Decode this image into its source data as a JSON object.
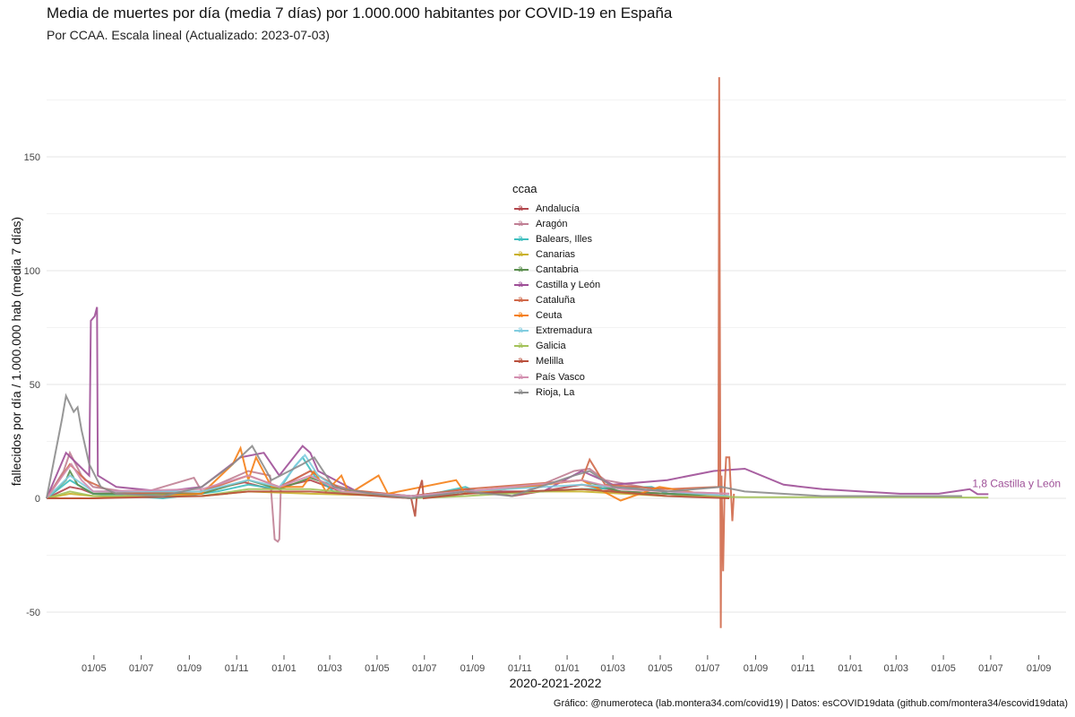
{
  "title": "Media de muertes por día (media 7 días) por 1.000.000 habitantes por COVID-19 en España",
  "subtitle": "Por CCAA. Escala lineal  (Actualizado: 2023-07-03)",
  "caption": "Gráfico: @numeroteca (lab.montera34.com/covid19) | Datos: esCOVID19data (github.com/montera34/escovid19data)",
  "chart_data": {
    "type": "line",
    "title": "Media de muertes por día (media 7 días) por 1.000.000 habitantes por COVID-19 en España",
    "xlabel": "2020-2021-2022",
    "ylabel": "fallecidos por día / 1.000.000 hab (media 7 días)",
    "x_units": "days since 2020-03-01",
    "xlim": [
      0,
      1315
    ],
    "ylim": [
      -65,
      190
    ],
    "grid": true,
    "y_ticks": [
      150,
      100,
      50,
      0,
      -50
    ],
    "y_ticks_minor": [
      175,
      125,
      75,
      25,
      -25
    ],
    "x_ticks": [
      {
        "x": 61,
        "label": "01/05"
      },
      {
        "x": 122,
        "label": "01/07"
      },
      {
        "x": 184,
        "label": "01/09"
      },
      {
        "x": 245,
        "label": "01/11"
      },
      {
        "x": 306,
        "label": "01/01"
      },
      {
        "x": 365,
        "label": "01/03"
      },
      {
        "x": 426,
        "label": "01/05"
      },
      {
        "x": 487,
        "label": "01/07"
      },
      {
        "x": 549,
        "label": "01/09"
      },
      {
        "x": 610,
        "label": "01/11"
      },
      {
        "x": 671,
        "label": "01/01"
      },
      {
        "x": 730,
        "label": "01/03"
      },
      {
        "x": 791,
        "label": "01/05"
      },
      {
        "x": 852,
        "label": "01/07"
      },
      {
        "x": 914,
        "label": "01/09"
      },
      {
        "x": 975,
        "label": "01/11"
      },
      {
        "x": 1036,
        "label": "01/01"
      },
      {
        "x": 1095,
        "label": "01/03"
      },
      {
        "x": 1156,
        "label": "01/05"
      },
      {
        "x": 1217,
        "label": "01/07"
      },
      {
        "x": 1279,
        "label": "01/09"
      }
    ],
    "legend_title": "ccaa",
    "legend_position": "center",
    "end_label": {
      "text": "1,8 Castilla y León",
      "x": 1214,
      "y": 1.8,
      "color": "#9e4f97"
    },
    "series": [
      {
        "name": "Andalucía",
        "color": "#b2474d",
        "points": [
          [
            0,
            0
          ],
          [
            30,
            5
          ],
          [
            45,
            4
          ],
          [
            60,
            2
          ],
          [
            200,
            3
          ],
          [
            255,
            7
          ],
          [
            290,
            4
          ],
          [
            340,
            8
          ],
          [
            380,
            3
          ],
          [
            470,
            1
          ],
          [
            540,
            4
          ],
          [
            600,
            1
          ],
          [
            690,
            6
          ],
          [
            740,
            3
          ],
          [
            800,
            2
          ],
          [
            880,
            1
          ]
        ]
      },
      {
        "name": "Aragón",
        "color": "#c07f94",
        "points": [
          [
            0,
            0
          ],
          [
            22,
            12
          ],
          [
            30,
            20
          ],
          [
            45,
            10
          ],
          [
            60,
            5
          ],
          [
            120,
            2
          ],
          [
            190,
            9
          ],
          [
            200,
            3
          ],
          [
            260,
            12
          ],
          [
            288,
            10
          ],
          [
            294,
            -18
          ],
          [
            298,
            -19
          ],
          [
            300,
            -18
          ],
          [
            302,
            5
          ],
          [
            340,
            12
          ],
          [
            370,
            6
          ],
          [
            400,
            3
          ],
          [
            470,
            1
          ],
          [
            540,
            3
          ],
          [
            610,
            2
          ],
          [
            680,
            12
          ],
          [
            700,
            13
          ],
          [
            720,
            8
          ],
          [
            800,
            3
          ],
          [
            880,
            2
          ]
        ]
      },
      {
        "name": "Balears, Illes",
        "color": "#3fbfbf",
        "points": [
          [
            0,
            0
          ],
          [
            30,
            8
          ],
          [
            60,
            2
          ],
          [
            150,
            0
          ],
          [
            220,
            3
          ],
          [
            260,
            6
          ],
          [
            300,
            4
          ],
          [
            320,
            14
          ],
          [
            330,
            18
          ],
          [
            345,
            10
          ],
          [
            370,
            3
          ],
          [
            470,
            0
          ],
          [
            540,
            5
          ],
          [
            560,
            2
          ],
          [
            690,
            4
          ],
          [
            780,
            5
          ],
          [
            800,
            2
          ],
          [
            880,
            1
          ]
        ]
      },
      {
        "name": "Canarias",
        "color": "#c9b12a",
        "points": [
          [
            0,
            0
          ],
          [
            30,
            2
          ],
          [
            60,
            1
          ],
          [
            200,
            1
          ],
          [
            260,
            3
          ],
          [
            340,
            2
          ],
          [
            470,
            1
          ],
          [
            540,
            3
          ],
          [
            690,
            3
          ],
          [
            800,
            1
          ],
          [
            880,
            1
          ]
        ]
      },
      {
        "name": "Cantabria",
        "color": "#5b8f4f",
        "points": [
          [
            0,
            0
          ],
          [
            25,
            8
          ],
          [
            30,
            12
          ],
          [
            40,
            6
          ],
          [
            60,
            2
          ],
          [
            200,
            2
          ],
          [
            260,
            8
          ],
          [
            300,
            4
          ],
          [
            340,
            9
          ],
          [
            400,
            2
          ],
          [
            470,
            0
          ],
          [
            540,
            2
          ],
          [
            690,
            8
          ],
          [
            740,
            3
          ],
          [
            800,
            2
          ],
          [
            880,
            1
          ]
        ]
      },
      {
        "name": "Castilla y León",
        "color": "#9e4f97",
        "points": [
          [
            0,
            0
          ],
          [
            25,
            20
          ],
          [
            40,
            15
          ],
          [
            55,
            10
          ],
          [
            57,
            78
          ],
          [
            62,
            80
          ],
          [
            65,
            84
          ],
          [
            66,
            10
          ],
          [
            90,
            5
          ],
          [
            150,
            3
          ],
          [
            200,
            5
          ],
          [
            250,
            18
          ],
          [
            280,
            20
          ],
          [
            300,
            10
          ],
          [
            330,
            23
          ],
          [
            340,
            20
          ],
          [
            350,
            12
          ],
          [
            400,
            3
          ],
          [
            470,
            1
          ],
          [
            540,
            3
          ],
          [
            640,
            3
          ],
          [
            690,
            12
          ],
          [
            730,
            6
          ],
          [
            800,
            8
          ],
          [
            860,
            12
          ],
          [
            900,
            13
          ],
          [
            950,
            6
          ],
          [
            1000,
            4
          ],
          [
            1050,
            3
          ],
          [
            1100,
            2
          ],
          [
            1150,
            2
          ],
          [
            1190,
            4
          ],
          [
            1200,
            1.8
          ],
          [
            1214,
            1.8
          ]
        ]
      },
      {
        "name": "Cataluña",
        "color": "#d0694a",
        "points": [
          [
            0,
            0
          ],
          [
            30,
            15
          ],
          [
            50,
            8
          ],
          [
            90,
            2
          ],
          [
            200,
            3
          ],
          [
            260,
            10
          ],
          [
            300,
            5
          ],
          [
            340,
            12
          ],
          [
            380,
            4
          ],
          [
            470,
            1
          ],
          [
            540,
            4
          ],
          [
            690,
            8
          ],
          [
            700,
            17
          ],
          [
            720,
            6
          ],
          [
            800,
            4
          ],
          [
            866,
            5
          ],
          [
            867,
            185
          ],
          [
            868,
            60
          ],
          [
            869,
            -57
          ],
          [
            870,
            10
          ],
          [
            872,
            -32
          ],
          [
            874,
            5
          ],
          [
            876,
            18
          ],
          [
            880,
            18
          ],
          [
            884,
            -10
          ],
          [
            886,
            2
          ]
        ]
      },
      {
        "name": "Ceuta",
        "color": "#f57f17",
        "points": [
          [
            0,
            0
          ],
          [
            60,
            0
          ],
          [
            200,
            2
          ],
          [
            240,
            15
          ],
          [
            250,
            22
          ],
          [
            260,
            8
          ],
          [
            270,
            18
          ],
          [
            290,
            5
          ],
          [
            330,
            5
          ],
          [
            345,
            12
          ],
          [
            360,
            3
          ],
          [
            380,
            10
          ],
          [
            390,
            2
          ],
          [
            428,
            10
          ],
          [
            440,
            2
          ],
          [
            528,
            8
          ],
          [
            540,
            2
          ],
          [
            690,
            8
          ],
          [
            740,
            -1
          ],
          [
            790,
            5
          ],
          [
            880,
            0
          ]
        ]
      },
      {
        "name": "Extremadura",
        "color": "#82cde0",
        "points": [
          [
            0,
            0
          ],
          [
            30,
            10
          ],
          [
            60,
            3
          ],
          [
            200,
            3
          ],
          [
            260,
            8
          ],
          [
            300,
            5
          ],
          [
            325,
            16
          ],
          [
            333,
            19
          ],
          [
            350,
            10
          ],
          [
            380,
            3
          ],
          [
            470,
            1
          ],
          [
            540,
            3
          ],
          [
            690,
            6
          ],
          [
            800,
            3
          ],
          [
            880,
            1
          ]
        ]
      },
      {
        "name": "Galicia",
        "color": "#a4c25a",
        "points": [
          [
            0,
            0
          ],
          [
            30,
            3
          ],
          [
            60,
            1
          ],
          [
            200,
            1
          ],
          [
            260,
            4
          ],
          [
            340,
            4
          ],
          [
            470,
            0
          ],
          [
            540,
            1
          ],
          [
            690,
            4
          ],
          [
            800,
            1
          ],
          [
            900,
            0.5
          ],
          [
            1000,
            0.5
          ],
          [
            1100,
            0.5
          ],
          [
            1214,
            0.3
          ]
        ]
      },
      {
        "name": "Melilla",
        "color": "#b9503d",
        "points": [
          [
            0,
            0
          ],
          [
            60,
            0
          ],
          [
            200,
            1
          ],
          [
            260,
            3
          ],
          [
            340,
            3
          ],
          [
            470,
            0
          ],
          [
            475,
            -8
          ],
          [
            477,
            0
          ],
          [
            484,
            8
          ],
          [
            486,
            0
          ],
          [
            540,
            2
          ],
          [
            690,
            4
          ],
          [
            800,
            1
          ],
          [
            880,
            0
          ]
        ]
      },
      {
        "name": "País Vasco",
        "color": "#d38fb0",
        "points": [
          [
            0,
            0
          ],
          [
            25,
            12
          ],
          [
            32,
            15
          ],
          [
            45,
            8
          ],
          [
            60,
            3
          ],
          [
            200,
            4
          ],
          [
            260,
            10
          ],
          [
            300,
            5
          ],
          [
            340,
            10
          ],
          [
            380,
            3
          ],
          [
            470,
            1
          ],
          [
            540,
            3
          ],
          [
            690,
            8
          ],
          [
            740,
            4
          ],
          [
            800,
            3
          ],
          [
            880,
            2
          ]
        ]
      },
      {
        "name": "Rioja, La",
        "color": "#8c8c8c",
        "points": [
          [
            0,
            0
          ],
          [
            20,
            35
          ],
          [
            25,
            45
          ],
          [
            35,
            38
          ],
          [
            40,
            40
          ],
          [
            45,
            30
          ],
          [
            55,
            15
          ],
          [
            70,
            5
          ],
          [
            90,
            2
          ],
          [
            150,
            1
          ],
          [
            200,
            5
          ],
          [
            240,
            15
          ],
          [
            265,
            23
          ],
          [
            290,
            8
          ],
          [
            330,
            15
          ],
          [
            345,
            18
          ],
          [
            370,
            5
          ],
          [
            420,
            2
          ],
          [
            470,
            0
          ],
          [
            540,
            3
          ],
          [
            600,
            1
          ],
          [
            680,
            10
          ],
          [
            700,
            12
          ],
          [
            730,
            5
          ],
          [
            800,
            3
          ],
          [
            870,
            5
          ],
          [
            900,
            3
          ],
          [
            1000,
            1
          ],
          [
            1100,
            1
          ],
          [
            1180,
            1
          ]
        ]
      }
    ]
  }
}
